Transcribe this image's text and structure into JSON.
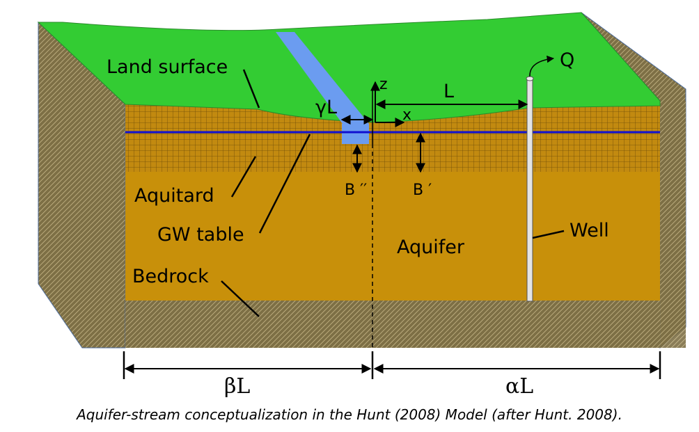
{
  "labels": {
    "land_surface": "Land surface",
    "aquitard": "Aquitard",
    "gw_table": "GW table",
    "bedrock": "Bedrock",
    "aquifer": "Aquifer",
    "well": "Well",
    "q": "Q",
    "z": "z",
    "x": "x",
    "l": "L",
    "gamma_l": "γL",
    "b_double_prime": "B ′′",
    "b_prime": "B ′",
    "beta_l": "βL",
    "alpha_l": "αL"
  },
  "caption": "Aquifer-stream conceptualization in the Hunt (2008) Model (after Hunt. 2008).",
  "colors": {
    "land": "#33cc33",
    "stream": "#6b9cf0",
    "aquitard": "#c28a10",
    "aquifer": "#c8900a",
    "bedrock": "#8a7a52",
    "water_table": "#1010d0",
    "well": "#e4e4e4"
  }
}
